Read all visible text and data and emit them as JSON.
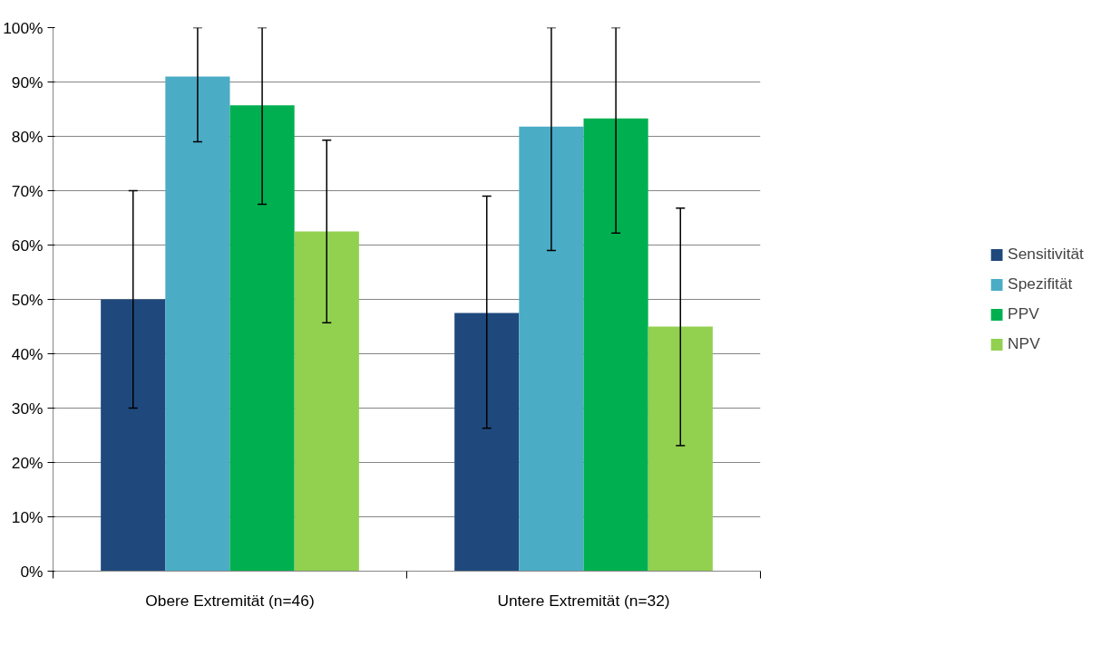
{
  "chart_data": {
    "type": "bar",
    "categories": [
      "Obere Extremität (n=46)",
      "Untere Extremität (n=32)"
    ],
    "series": [
      {
        "name": "Sensitivität",
        "color": "#1f497d",
        "values": [
          50,
          47.5
        ],
        "errors": [
          [
            30,
            70
          ],
          [
            26.3,
            69
          ]
        ]
      },
      {
        "name": "Spezifität",
        "color": "#4bacc6",
        "values": [
          91,
          81.8
        ],
        "errors": [
          [
            79,
            100
          ],
          [
            59,
            100
          ]
        ]
      },
      {
        "name": "PPV",
        "color": "#00b050",
        "values": [
          85.7,
          83.3
        ],
        "errors": [
          [
            67.5,
            100
          ],
          [
            62.2,
            100
          ]
        ]
      },
      {
        "name": "NPV",
        "color": "#92d050",
        "values": [
          62.5,
          45
        ],
        "errors": [
          [
            45.7,
            79.3
          ],
          [
            23.1,
            66.8
          ]
        ]
      }
    ],
    "ylim": [
      0,
      100
    ],
    "yticks": [
      {
        "value": 0,
        "label": "0%"
      },
      {
        "value": 10,
        "label": "10%"
      },
      {
        "value": 20,
        "label": "20%"
      },
      {
        "value": 30,
        "label": "30%"
      },
      {
        "value": 40,
        "label": "40%"
      },
      {
        "value": 50,
        "label": "50%"
      },
      {
        "value": 60,
        "label": "60%"
      },
      {
        "value": 70,
        "label": "70%"
      },
      {
        "value": 80,
        "label": "80%"
      },
      {
        "value": 90,
        "label": "90%"
      },
      {
        "value": 100,
        "label": "100%"
      }
    ],
    "grid": "y",
    "legend": "right"
  }
}
